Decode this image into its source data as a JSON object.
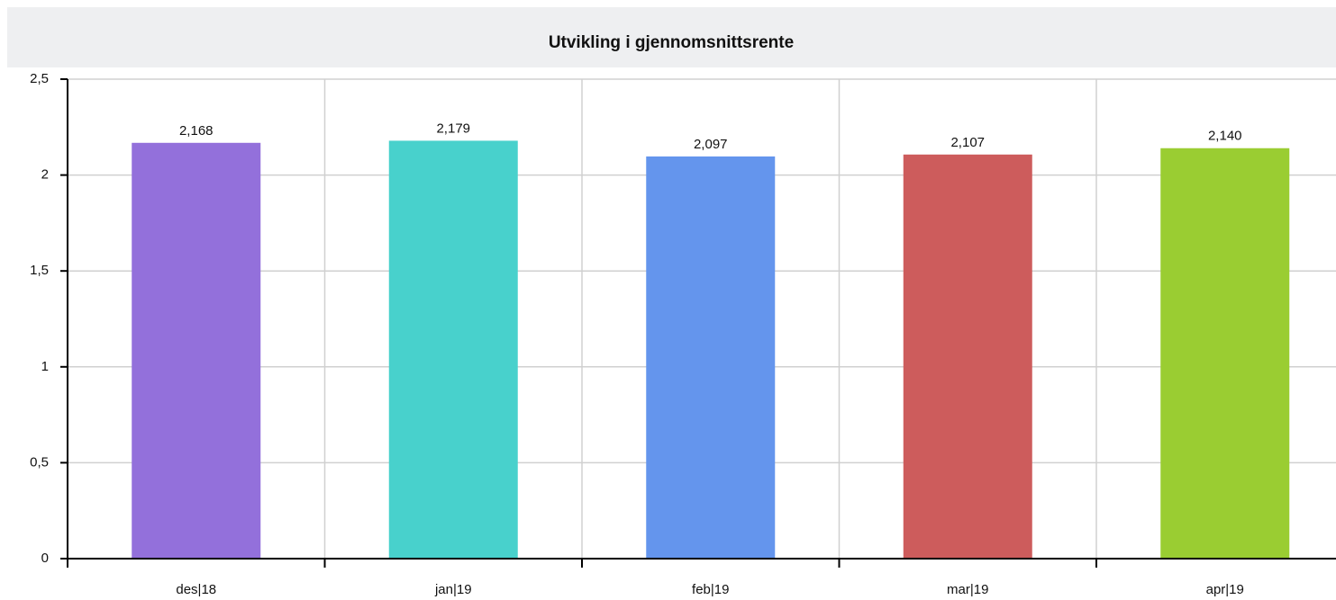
{
  "chart_data": {
    "type": "bar",
    "title": "Utvikling i gjennomsnittsrente",
    "categories": [
      "des|18",
      "jan|19",
      "feb|19",
      "mar|19",
      "apr|19"
    ],
    "values": [
      2.168,
      2.179,
      2.097,
      2.107,
      2.14
    ],
    "value_labels": [
      "2,168",
      "2,179",
      "2,097",
      "2,107",
      "2,140"
    ],
    "colors": [
      "#9370db",
      "#48d1cc",
      "#6495ed",
      "#cd5c5c",
      "#9acd32"
    ],
    "ylim": [
      0,
      2.5
    ],
    "yticks": [
      0,
      {
        "value": 0.5,
        "label": "0,5"
      },
      1,
      {
        "value": 1.5,
        "label": "1,5"
      },
      2,
      {
        "value": 2.5,
        "label": "2,5"
      }
    ],
    "grid": true
  }
}
